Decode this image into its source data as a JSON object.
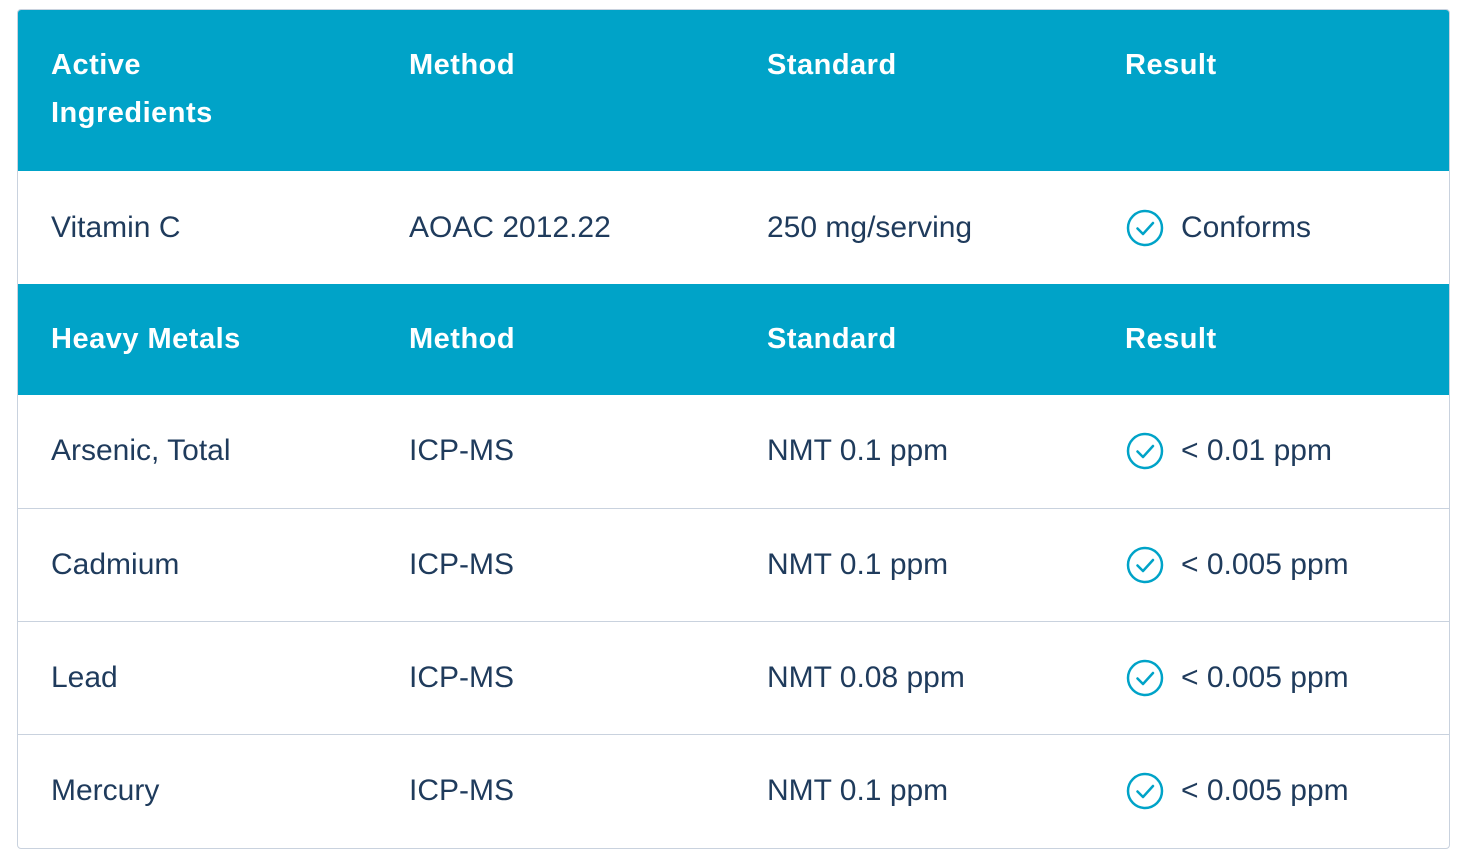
{
  "sections": [
    {
      "header": [
        "Active Ingredients",
        "Method",
        "Standard",
        "Result"
      ],
      "rows": [
        [
          "Vitamin C",
          "AOAC 2012.22",
          "250 mg/serving",
          "Conforms"
        ]
      ]
    },
    {
      "header": [
        "Heavy Metals",
        "Method",
        "Standard",
        "Result"
      ],
      "rows": [
        [
          "Arsenic, Total",
          "ICP-MS",
          "NMT 0.1 ppm",
          "< 0.01 ppm"
        ],
        [
          "Cadmium",
          "ICP-MS",
          "NMT 0.1 ppm",
          "< 0.005 ppm"
        ],
        [
          "Lead",
          "ICP-MS",
          "NMT 0.08 ppm",
          "< 0.005 ppm"
        ],
        [
          "Mercury",
          "ICP-MS",
          "NMT 0.1 ppm",
          "< 0.005 ppm"
        ]
      ]
    }
  ]
}
